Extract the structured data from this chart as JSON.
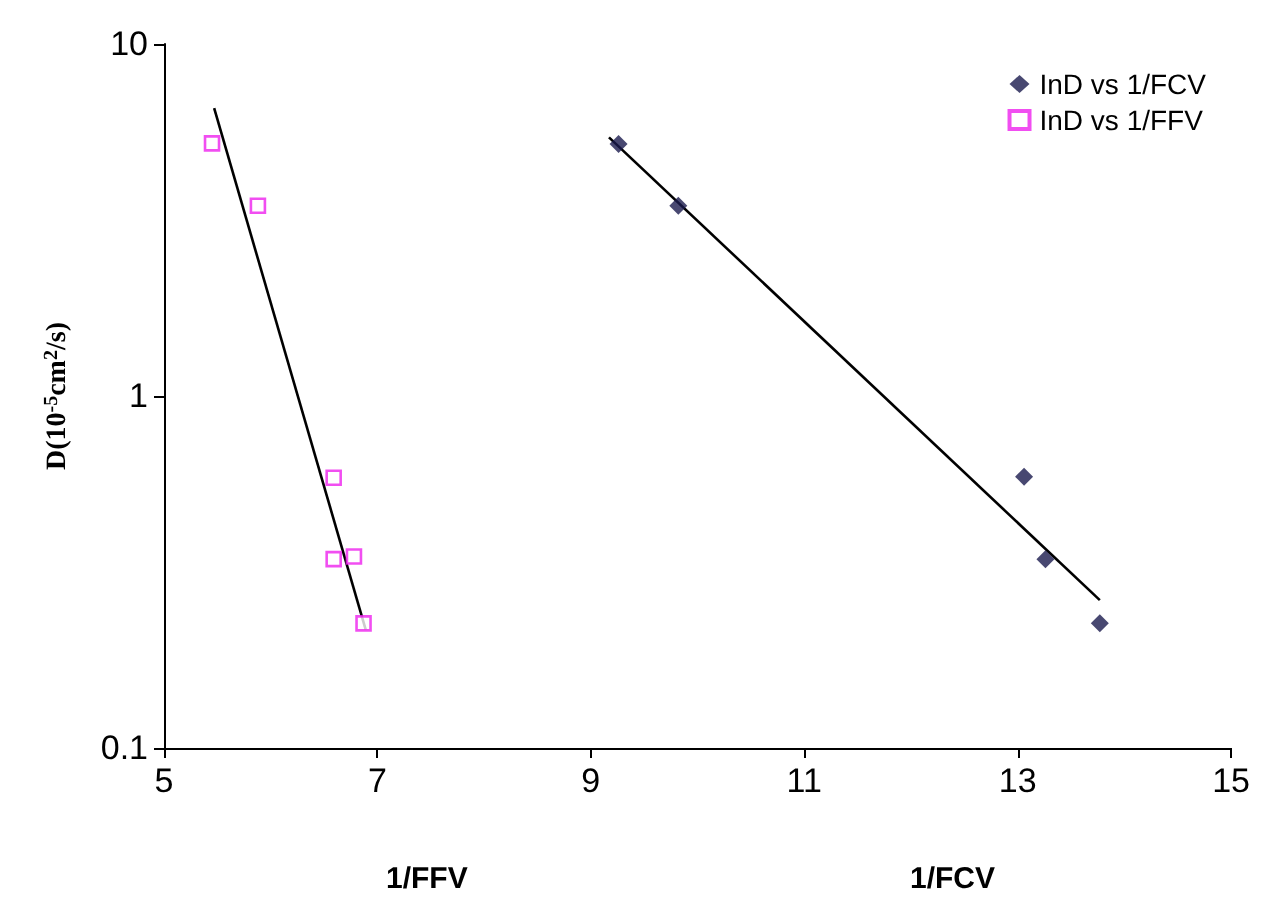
{
  "chart_data": {
    "type": "scatter",
    "ylabel": "D(10$^{-5}$cm$^{2}$/s)",
    "xlabel": "1/FFV",
    "annotations": [
      "1/FCV"
    ],
    "xlim": [
      5,
      15
    ],
    "xticks": [
      5,
      7,
      9,
      11,
      13,
      15
    ],
    "ylim": [
      0.1,
      10
    ],
    "yticks": [
      0.1,
      1,
      10
    ],
    "log": "y",
    "grid": false,
    "legend": "top right",
    "series": [
      {
        "name": "InD vs 1/FCV",
        "color": "#1a1a4e",
        "marker": "diamond",
        "x": [
          9.26,
          9.82,
          13.06,
          13.26,
          13.77
        ],
        "values": [
          5.2,
          3.47,
          0.59,
          0.344,
          0.226
        ]
      },
      {
        "name": "InD vs 1/FFV",
        "color": "#ee22ee",
        "marker": "square",
        "x": [
          5.45,
          5.88,
          6.59,
          6.59,
          6.78,
          6.87
        ],
        "values": [
          5.22,
          3.47,
          0.586,
          0.344,
          0.35,
          0.226
        ]
      },
      {
        "type": "line",
        "color": "#000000",
        "marker": "none",
        "x": [
          5.47,
          6.89
        ],
        "values": [
          6.57,
          0.217
        ]
      },
      {
        "type": "line",
        "color": "#000000",
        "marker": "none",
        "x": [
          9.17,
          13.77
        ],
        "values": [
          5.43,
          0.263
        ]
      }
    ]
  }
}
